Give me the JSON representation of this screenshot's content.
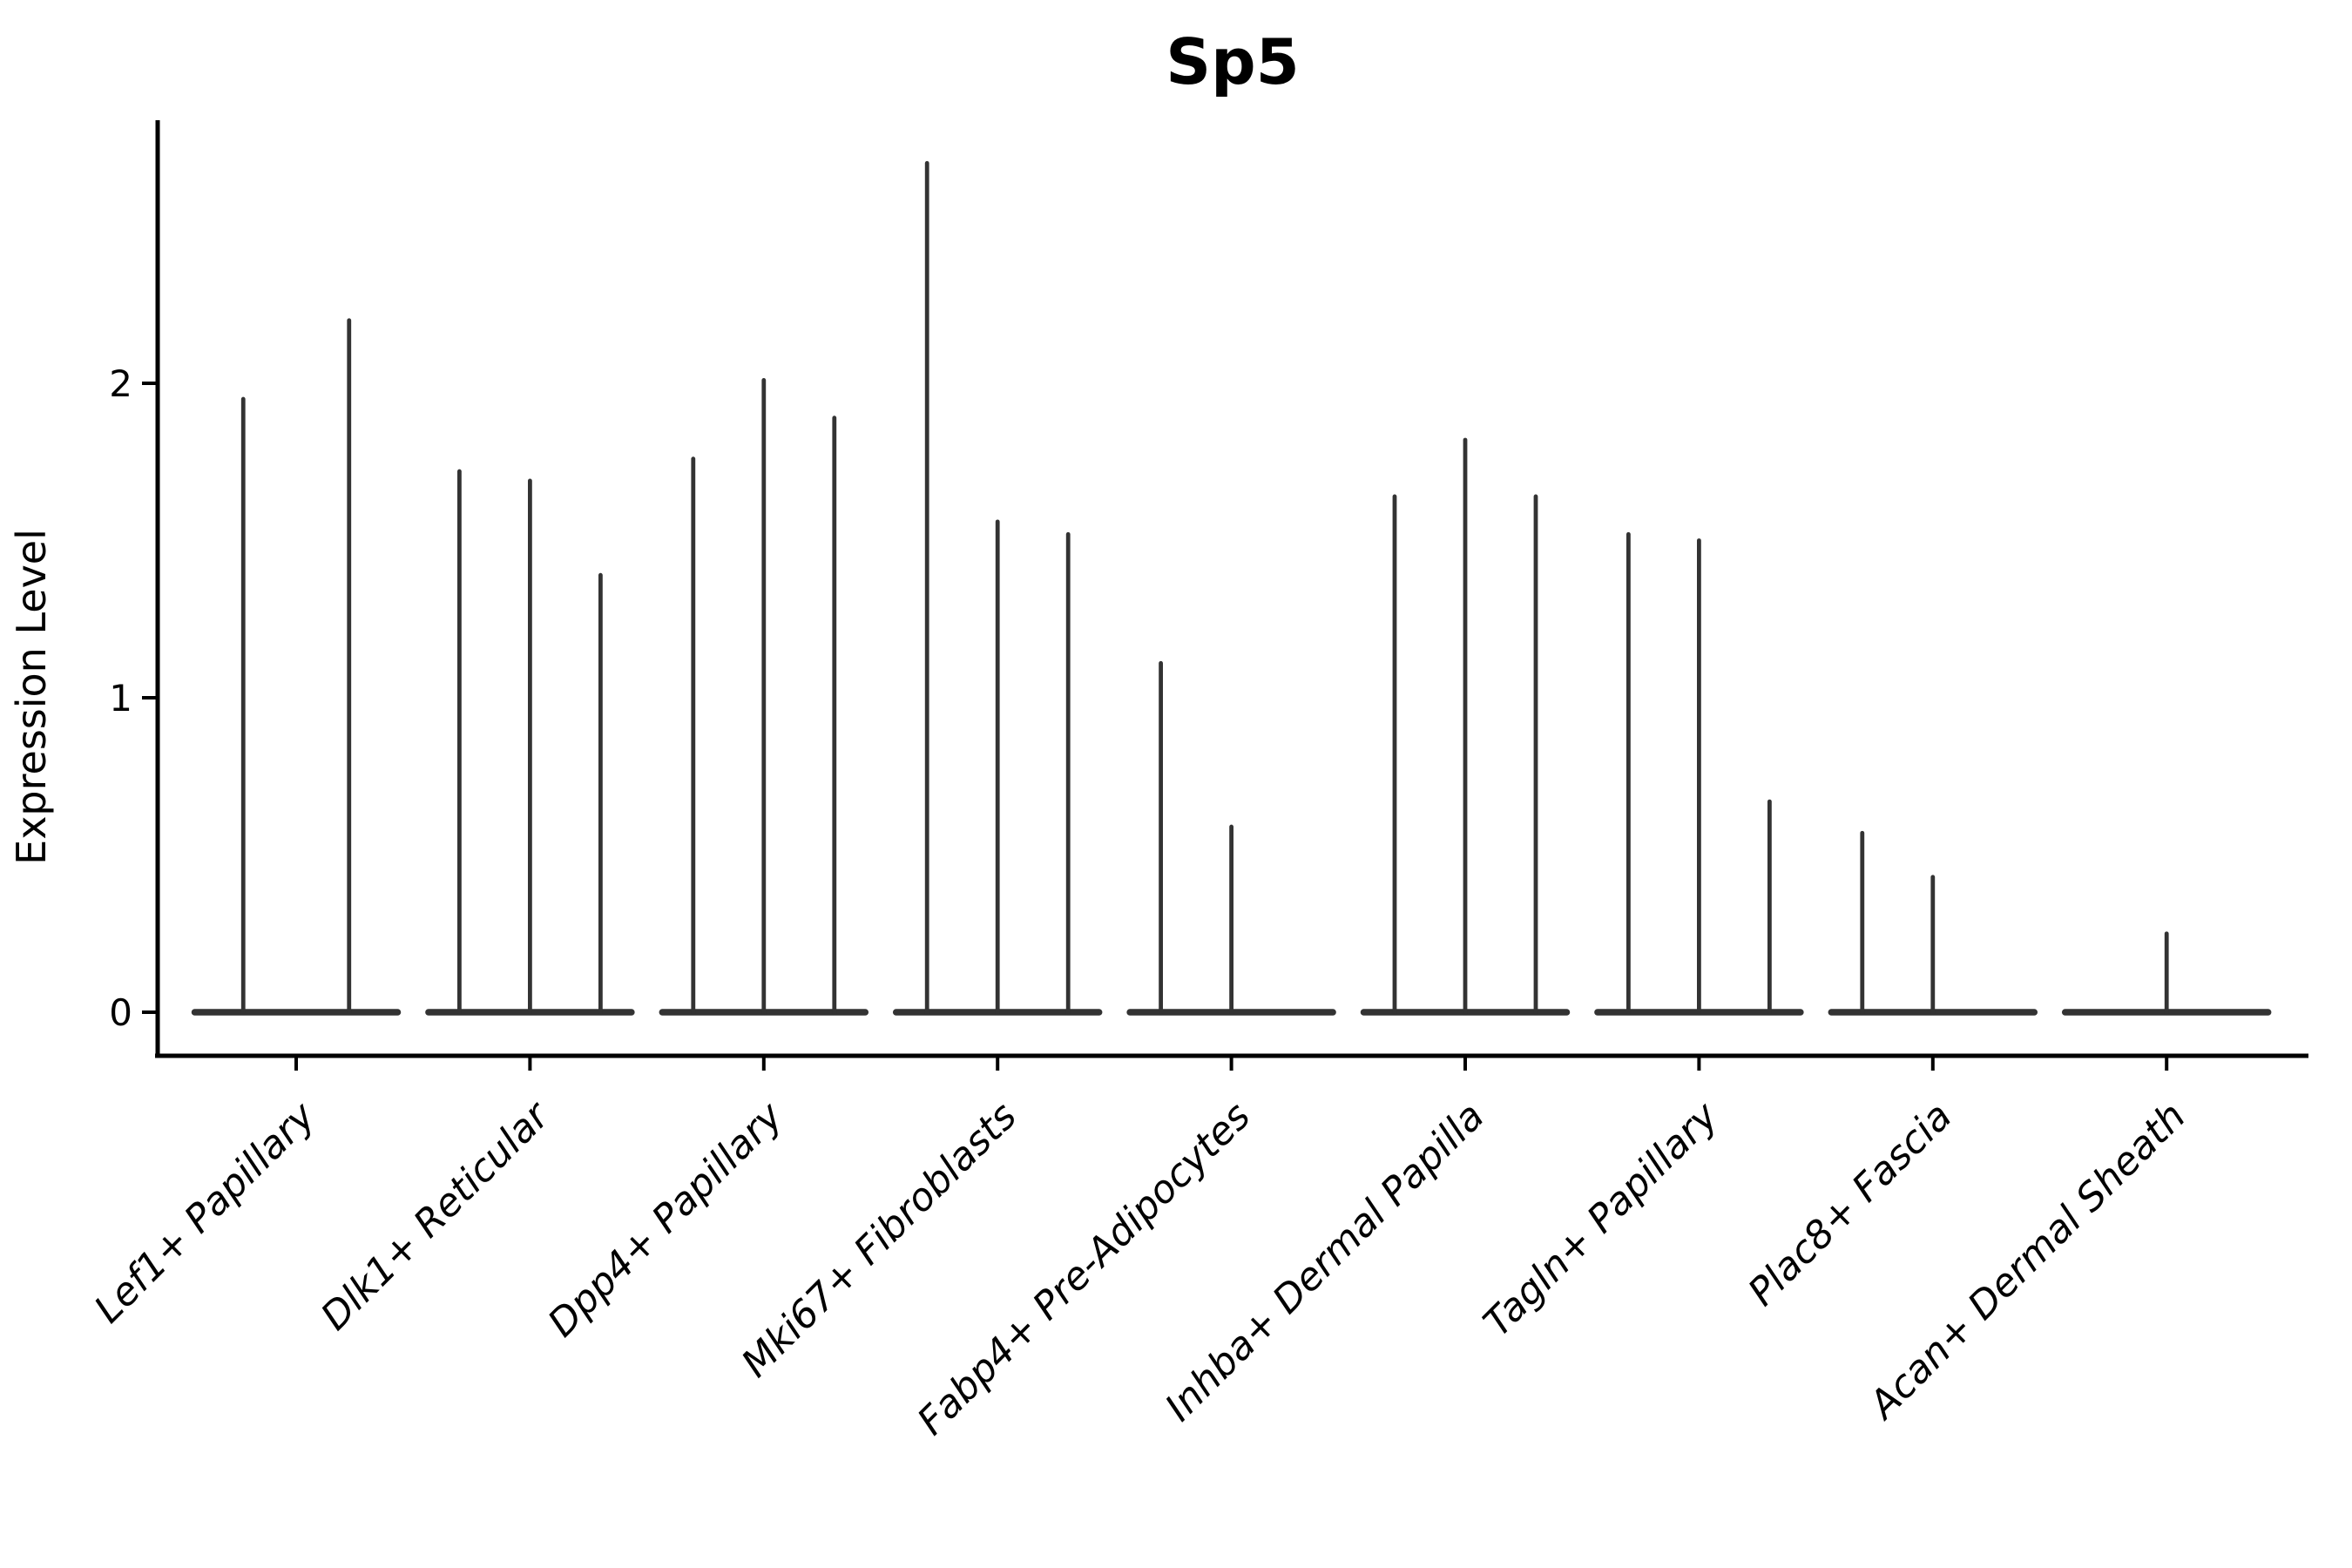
{
  "title": "Sp5",
  "axes": {
    "ylabel": "Expression Level",
    "ytick_labels": [
      "0",
      "1",
      "2"
    ]
  },
  "chart_data": {
    "type": "violin",
    "title": "Sp5",
    "xlabel": "",
    "ylabel": "Expression Level",
    "ylim": [
      0,
      2.83
    ],
    "yticks": [
      0,
      1,
      2
    ],
    "grid": false,
    "legend": "none",
    "violin_style": "needle-thin violins collapsed to a flat bar at 0 with narrow vertical spikes",
    "categories": [
      "Lef1+ Papillary",
      "Dlk1+ Reticular",
      "Dpp4+ Papillary",
      "Mki67+ Fibroblasts",
      "Fabp4+ Pre-Adipocytes",
      "Inhba+ Dermal Papilla",
      "Tagln+ Papillary",
      "Plac8+ Fascia",
      "Acan+ Dermal Sheath"
    ],
    "groups": [
      {
        "category": "Lef1+ Papillary",
        "n_violins": 2,
        "peak_values": [
          1.95,
          2.2
        ]
      },
      {
        "category": "Dlk1+ Reticular",
        "n_violins": 3,
        "peak_values": [
          1.72,
          1.69,
          1.39
        ]
      },
      {
        "category": "Dpp4+ Papillary",
        "n_violins": 3,
        "peak_values": [
          1.76,
          2.01,
          1.89
        ]
      },
      {
        "category": "Mki67+ Fibroblasts",
        "n_violins": 3,
        "peak_values": [
          2.7,
          1.56,
          1.52
        ]
      },
      {
        "category": "Fabp4+ Pre-Adipocytes",
        "n_violins": 3,
        "peak_values": [
          1.11,
          0.59,
          null
        ]
      },
      {
        "category": "Inhba+ Dermal Papilla",
        "n_violins": 3,
        "peak_values": [
          1.64,
          1.82,
          1.64
        ]
      },
      {
        "category": "Tagln+ Papillary",
        "n_violins": 3,
        "peak_values": [
          1.52,
          1.5,
          0.67
        ]
      },
      {
        "category": "Plac8+ Fascia",
        "n_violins": 3,
        "peak_values": [
          0.57,
          0.43,
          null
        ]
      },
      {
        "category": "Acan+ Dermal Sheath",
        "n_violins": 1,
        "peak_values": [
          0.25
        ]
      }
    ],
    "colors": {
      "violin": "#333333",
      "axis": "#000000",
      "text": "#000000",
      "background": "#ffffff"
    }
  }
}
